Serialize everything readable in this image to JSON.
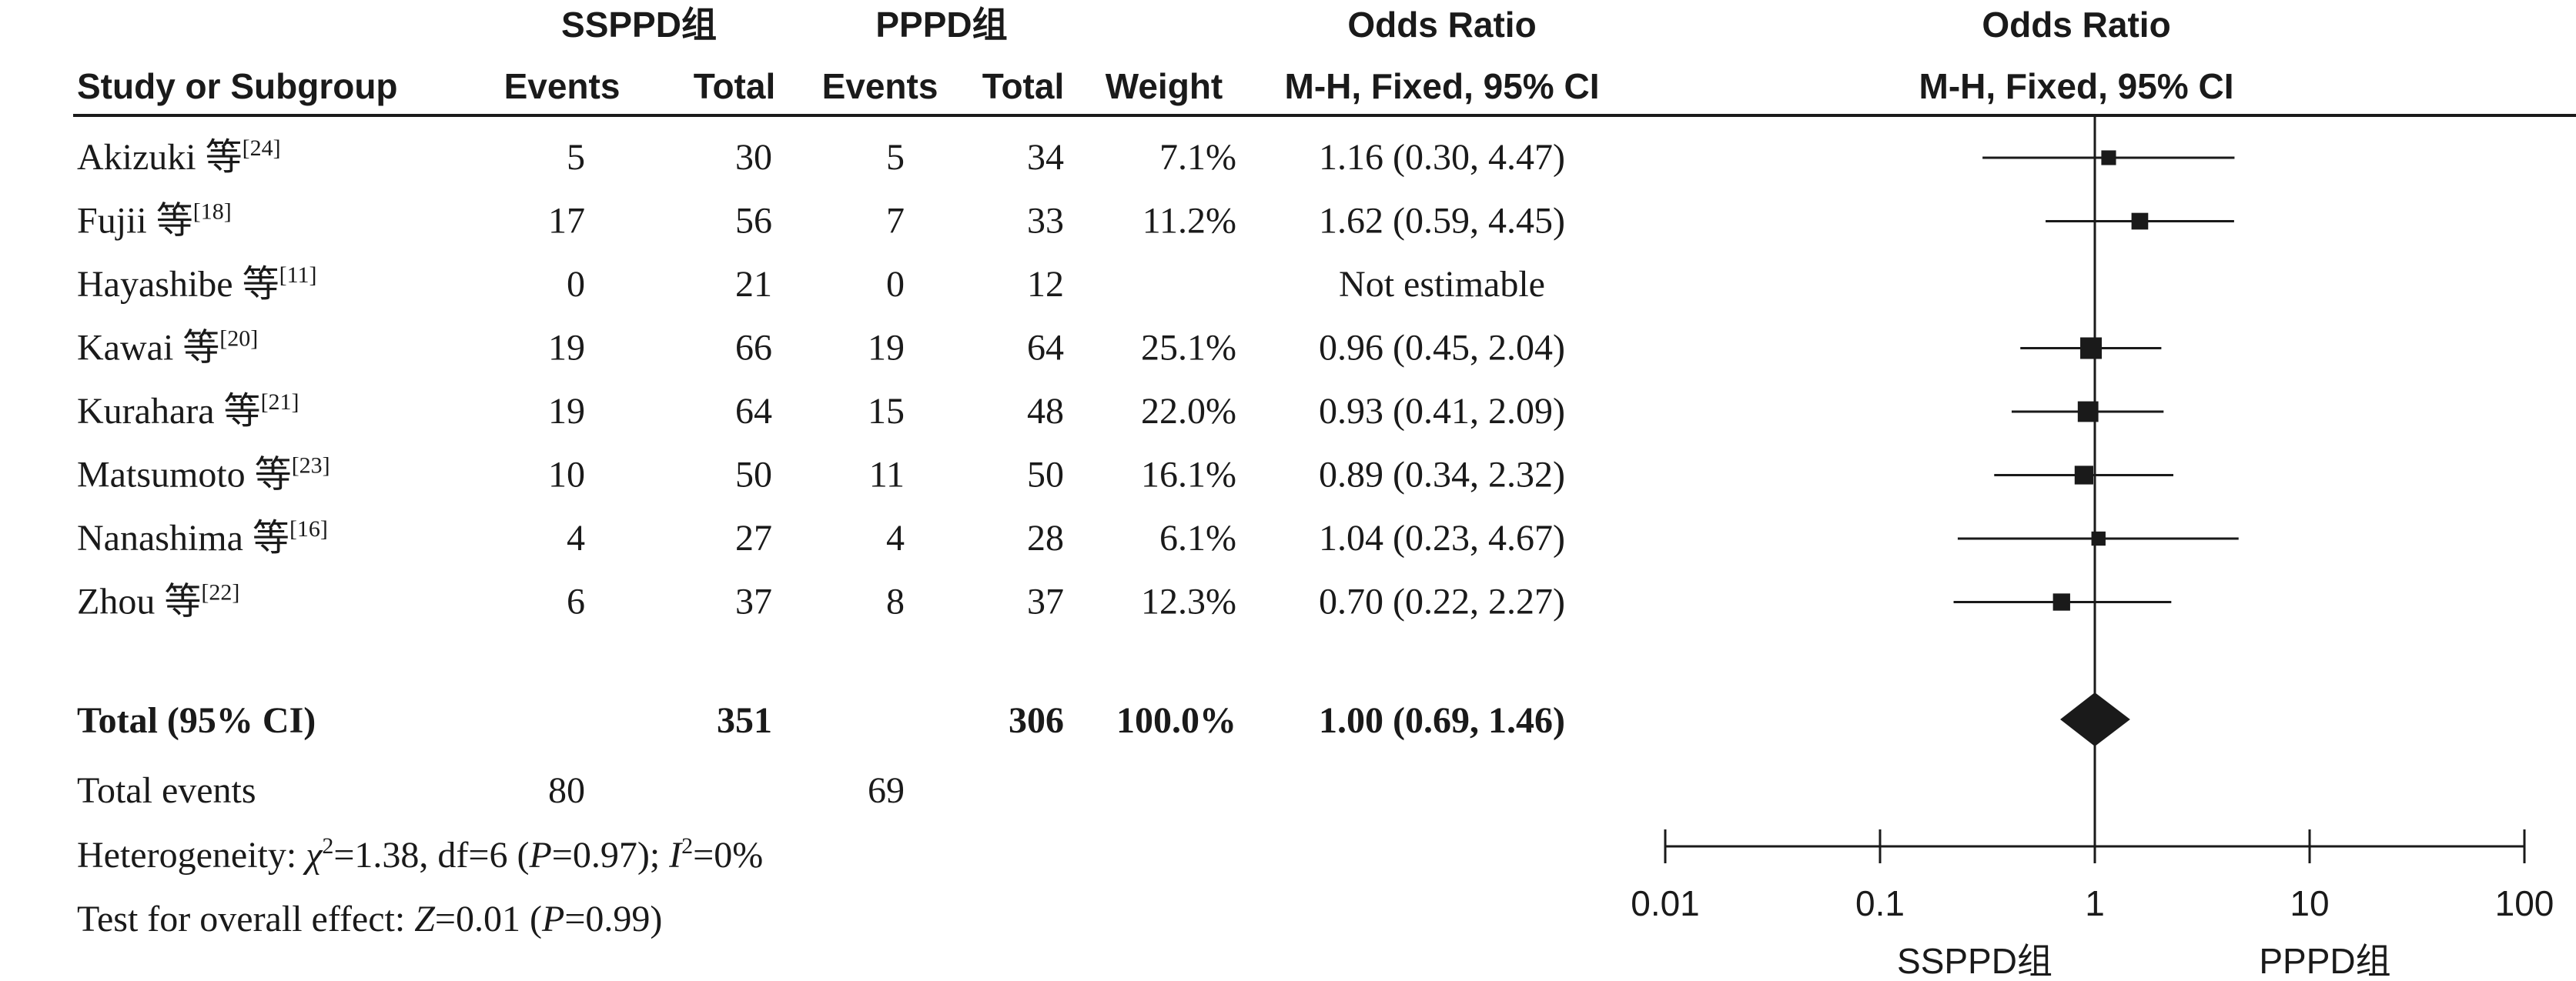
{
  "columns": {
    "group1": "SSPPD组",
    "group2": "PPPD组",
    "or_header": "Odds Ratio",
    "study": "Study or Subgroup",
    "events1": "Events",
    "total1": "Total",
    "events2": "Events",
    "total2": "Total",
    "weight": "Weight",
    "method": "M-H, Fixed, 95% CI",
    "plot_header": "Odds Ratio",
    "plot_method": "M-H, Fixed, 95% CI"
  },
  "chart_data": {
    "type": "forest",
    "scale": "log",
    "xlim": [
      0.01,
      100
    ],
    "x_ticks": [
      "0.01",
      "0.1",
      "1",
      "10",
      "100"
    ],
    "favours_left": "SSPPD组",
    "favours_right": "PPPD组",
    "studies": [
      {
        "name": "Akizuki 等",
        "ref": "[24]",
        "events1": "5",
        "total1": "30",
        "events2": "5",
        "total2": "34",
        "weight": "7.1%",
        "ci_text": "1.16 (0.30, 4.47)",
        "or": 1.16,
        "lo": 0.3,
        "hi": 4.47,
        "w": 7.1
      },
      {
        "name": "Fujii 等",
        "ref": "[18]",
        "events1": "17",
        "total1": "56",
        "events2": "7",
        "total2": "33",
        "weight": "11.2%",
        "ci_text": "1.62 (0.59, 4.45)",
        "or": 1.62,
        "lo": 0.59,
        "hi": 4.45,
        "w": 11.2
      },
      {
        "name": "Hayashibe 等",
        "ref": "[11]",
        "events1": "0",
        "total1": "21",
        "events2": "0",
        "total2": "12",
        "weight": "",
        "ci_text": "Not estimable",
        "or": null,
        "lo": null,
        "hi": null,
        "w": 0
      },
      {
        "name": "Kawai 等",
        "ref": "[20]",
        "events1": "19",
        "total1": "66",
        "events2": "19",
        "total2": "64",
        "weight": "25.1%",
        "ci_text": "0.96 (0.45, 2.04)",
        "or": 0.96,
        "lo": 0.45,
        "hi": 2.04,
        "w": 25.1
      },
      {
        "name": "Kurahara 等",
        "ref": "[21]",
        "events1": "19",
        "total1": "64",
        "events2": "15",
        "total2": "48",
        "weight": "22.0%",
        "ci_text": "0.93 (0.41, 2.09)",
        "or": 0.93,
        "lo": 0.41,
        "hi": 2.09,
        "w": 22.0
      },
      {
        "name": "Matsumoto 等",
        "ref": "[23]",
        "events1": "10",
        "total1": "50",
        "events2": "11",
        "total2": "50",
        "weight": "16.1%",
        "ci_text": "0.89 (0.34, 2.32)",
        "or": 0.89,
        "lo": 0.34,
        "hi": 2.32,
        "w": 16.1
      },
      {
        "name": "Nanashima 等",
        "ref": "[16]",
        "events1": "4",
        "total1": "27",
        "events2": "4",
        "total2": "28",
        "weight": "6.1%",
        "ci_text": "1.04 (0.23, 4.67)",
        "or": 1.04,
        "lo": 0.23,
        "hi": 4.67,
        "w": 6.1
      },
      {
        "name": "Zhou 等",
        "ref": "[22]",
        "events1": "6",
        "total1": "37",
        "events2": "8",
        "total2": "37",
        "weight": "12.3%",
        "ci_text": "0.70 (0.22, 2.27)",
        "or": 0.7,
        "lo": 0.22,
        "hi": 2.27,
        "w": 12.3
      }
    ],
    "total": {
      "label": "Total (95% CI)",
      "total1": "351",
      "total2": "306",
      "weight": "100.0%",
      "ci_text": "1.00 (0.69, 1.46)",
      "or": 1.0,
      "lo": 0.69,
      "hi": 1.46
    },
    "total_events": {
      "label": "Total events",
      "events1": "80",
      "events2": "69"
    },
    "heterogeneity": {
      "prefix": "Heterogeneity: ",
      "chi_sym": "χ",
      "chi_sup": "2",
      "chi_val": "=1.38, df=6 (",
      "p_sym": "P",
      "p_val": "=0.97); ",
      "i_sym": "I",
      "i_sup": "2",
      "i_val": "=0%"
    },
    "overall_effect": {
      "prefix": "Test for overall effect: ",
      "z_sym": "Z",
      "z_val": "=0.01 (",
      "p_sym": "P",
      "p_val": "=0.99)"
    }
  }
}
